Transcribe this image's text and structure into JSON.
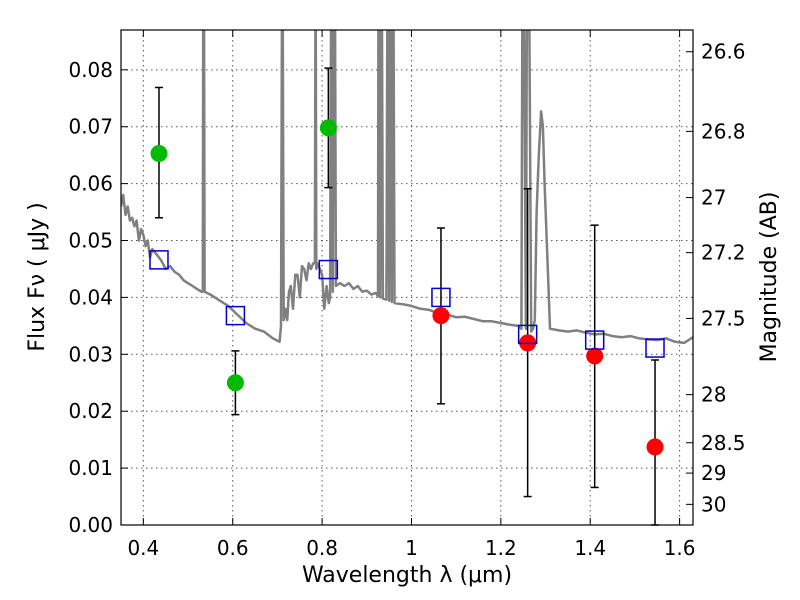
{
  "chart_data": {
    "type": "scatter",
    "title": "",
    "xlabel": "Wavelength  λ (μm)",
    "ylabel": "Flux  Fν  ( μJy )",
    "ylabel_right": "Magnitude (AB)",
    "xlim": [
      0.35,
      1.63
    ],
    "ylim": [
      0.0,
      0.087
    ],
    "grid": true,
    "x_ticks": [
      {
        "value": 0.4,
        "label": "0.4"
      },
      {
        "value": 0.6,
        "label": "0.6"
      },
      {
        "value": 0.8,
        "label": "0.8"
      },
      {
        "value": 1.0,
        "label": "1"
      },
      {
        "value": 1.2,
        "label": "1.2"
      },
      {
        "value": 1.4,
        "label": "1.4"
      },
      {
        "value": 1.6,
        "label": "1.6"
      }
    ],
    "y_ticks": [
      {
        "value": 0.0,
        "label": "0.00"
      },
      {
        "value": 0.01,
        "label": "0.01"
      },
      {
        "value": 0.02,
        "label": "0.02"
      },
      {
        "value": 0.03,
        "label": "0.03"
      },
      {
        "value": 0.04,
        "label": "0.04"
      },
      {
        "value": 0.05,
        "label": "0.05"
      },
      {
        "value": 0.06,
        "label": "0.06"
      },
      {
        "value": 0.07,
        "label": "0.07"
      },
      {
        "value": 0.08,
        "label": "0.08"
      }
    ],
    "y2_ticks": [
      {
        "value": 26.6,
        "label": "26.6"
      },
      {
        "value": 26.8,
        "label": "26.8"
      },
      {
        "value": 27.0,
        "label": "27"
      },
      {
        "value": 27.2,
        "label": "27.2"
      },
      {
        "value": 27.5,
        "label": "27.5"
      },
      {
        "value": 28.0,
        "label": "28"
      },
      {
        "value": 28.5,
        "label": "28.5"
      },
      {
        "value": 29.0,
        "label": "29"
      },
      {
        "value": 30.0,
        "label": "30"
      }
    ],
    "series": [
      {
        "kind": "marker",
        "shape": "circle",
        "color": "#00bb00",
        "points": [
          {
            "x": 0.435,
            "y": 0.0653,
            "ylo": 0.054,
            "yhi": 0.0769
          },
          {
            "x": 0.606,
            "y": 0.025,
            "ylo": 0.0194,
            "yhi": 0.0306
          },
          {
            "x": 0.814,
            "y": 0.0698,
            "ylo": 0.0593,
            "yhi": 0.0803
          }
        ]
      },
      {
        "kind": "marker",
        "shape": "circle",
        "color": "#ff0000",
        "points": [
          {
            "x": 1.066,
            "y": 0.0368,
            "ylo": 0.0213,
            "yhi": 0.0522
          },
          {
            "x": 1.26,
            "y": 0.032,
            "ylo": 0.005,
            "yhi": 0.0591
          },
          {
            "x": 1.41,
            "y": 0.0297,
            "ylo": 0.0066,
            "yhi": 0.0527
          },
          {
            "x": 1.545,
            "y": 0.0137,
            "ylo": 0.0,
            "yhi": 0.029
          }
        ]
      },
      {
        "kind": "marker",
        "shape": "square-open",
        "color": "#0000cc",
        "points": [
          {
            "x": 0.435,
            "y": 0.0466
          },
          {
            "x": 0.606,
            "y": 0.0368
          },
          {
            "x": 0.814,
            "y": 0.0449
          },
          {
            "x": 1.066,
            "y": 0.04
          },
          {
            "x": 1.26,
            "y": 0.0335
          },
          {
            "x": 1.41,
            "y": 0.0325
          },
          {
            "x": 1.545,
            "y": 0.0311
          }
        ]
      },
      {
        "kind": "line",
        "color": "#808080",
        "points": [
          [
            0.35,
            0.056
          ],
          [
            0.355,
            0.058
          ],
          [
            0.36,
            0.0545
          ],
          [
            0.365,
            0.056
          ],
          [
            0.37,
            0.0535
          ],
          [
            0.375,
            0.054
          ],
          [
            0.38,
            0.0525
          ],
          [
            0.385,
            0.0535
          ],
          [
            0.39,
            0.05
          ],
          [
            0.395,
            0.052
          ],
          [
            0.4,
            0.051
          ],
          [
            0.405,
            0.049
          ],
          [
            0.41,
            0.05
          ],
          [
            0.415,
            0.047
          ],
          [
            0.42,
            0.0485
          ],
          [
            0.43,
            0.0475
          ],
          [
            0.44,
            0.0465
          ],
          [
            0.45,
            0.045
          ],
          [
            0.46,
            0.0455
          ],
          [
            0.47,
            0.0445
          ],
          [
            0.48,
            0.044
          ],
          [
            0.49,
            0.043
          ],
          [
            0.5,
            0.0425
          ],
          [
            0.51,
            0.042
          ],
          [
            0.52,
            0.0415
          ],
          [
            0.53,
            0.041
          ],
          [
            0.533,
            0.041
          ],
          [
            0.534,
            0.087
          ],
          [
            0.536,
            0.087
          ],
          [
            0.537,
            0.041
          ],
          [
            0.55,
            0.0405
          ],
          [
            0.57,
            0.0395
          ],
          [
            0.59,
            0.0385
          ],
          [
            0.61,
            0.037
          ],
          [
            0.63,
            0.0355
          ],
          [
            0.65,
            0.0345
          ],
          [
            0.67,
            0.034
          ],
          [
            0.69,
            0.0328
          ],
          [
            0.705,
            0.0322
          ],
          [
            0.708,
            0.035
          ],
          [
            0.71,
            0.087
          ],
          [
            0.712,
            0.087
          ],
          [
            0.714,
            0.036
          ],
          [
            0.718,
            0.038
          ],
          [
            0.722,
            0.036
          ],
          [
            0.726,
            0.041
          ],
          [
            0.73,
            0.042
          ],
          [
            0.735,
            0.038
          ],
          [
            0.74,
            0.044
          ],
          [
            0.745,
            0.044
          ],
          [
            0.75,
            0.04
          ],
          [
            0.755,
            0.0455
          ],
          [
            0.76,
            0.045
          ],
          [
            0.765,
            0.043
          ],
          [
            0.77,
            0.046
          ],
          [
            0.775,
            0.045
          ],
          [
            0.78,
            0.046
          ],
          [
            0.784,
            0.046
          ],
          [
            0.785,
            0.087
          ],
          [
            0.786,
            0.087
          ],
          [
            0.787,
            0.045
          ],
          [
            0.79,
            0.046
          ],
          [
            0.795,
            0.045
          ],
          [
            0.8,
            0.044
          ],
          [
            0.805,
            0.038
          ],
          [
            0.81,
            0.042
          ],
          [
            0.815,
            0.039
          ],
          [
            0.818,
            0.04
          ],
          [
            0.82,
            0.087
          ],
          [
            0.822,
            0.087
          ],
          [
            0.824,
            0.041
          ],
          [
            0.826,
            0.087
          ],
          [
            0.829,
            0.087
          ],
          [
            0.831,
            0.042
          ],
          [
            0.84,
            0.0425
          ],
          [
            0.85,
            0.042
          ],
          [
            0.86,
            0.0425
          ],
          [
            0.87,
            0.0415
          ],
          [
            0.88,
            0.042
          ],
          [
            0.89,
            0.041
          ],
          [
            0.9,
            0.0412
          ],
          [
            0.91,
            0.0405
          ],
          [
            0.92,
            0.0408
          ],
          [
            0.925,
            0.0402
          ],
          [
            0.926,
            0.087
          ],
          [
            0.928,
            0.087
          ],
          [
            0.93,
            0.04
          ],
          [
            0.932,
            0.087
          ],
          [
            0.934,
            0.087
          ],
          [
            0.936,
            0.0398
          ],
          [
            0.944,
            0.0396
          ],
          [
            0.946,
            0.087
          ],
          [
            0.948,
            0.087
          ],
          [
            0.95,
            0.0394
          ],
          [
            0.952,
            0.087
          ],
          [
            0.954,
            0.087
          ],
          [
            0.956,
            0.0392
          ],
          [
            0.958,
            0.087
          ],
          [
            0.96,
            0.087
          ],
          [
            0.962,
            0.039
          ],
          [
            0.98,
            0.0388
          ],
          [
            1.0,
            0.0385
          ],
          [
            1.02,
            0.038
          ],
          [
            1.04,
            0.0378
          ],
          [
            1.06,
            0.0372
          ],
          [
            1.08,
            0.037
          ],
          [
            1.1,
            0.0365
          ],
          [
            1.12,
            0.0366
          ],
          [
            1.14,
            0.0362
          ],
          [
            1.16,
            0.0358
          ],
          [
            1.18,
            0.0358
          ],
          [
            1.2,
            0.0355
          ],
          [
            1.22,
            0.0352
          ],
          [
            1.24,
            0.035
          ],
          [
            1.246,
            0.0345
          ],
          [
            1.248,
            0.087
          ],
          [
            1.252,
            0.087
          ],
          [
            1.256,
            0.0345
          ],
          [
            1.258,
            0.087
          ],
          [
            1.264,
            0.087
          ],
          [
            1.268,
            0.034
          ],
          [
            1.272,
            0.0345
          ],
          [
            1.276,
            0.036
          ],
          [
            1.28,
            0.055
          ],
          [
            1.285,
            0.065
          ],
          [
            1.29,
            0.0727
          ],
          [
            1.294,
            0.07
          ],
          [
            1.298,
            0.06
          ],
          [
            1.305,
            0.045
          ],
          [
            1.31,
            0.0345
          ],
          [
            1.33,
            0.0342
          ],
          [
            1.35,
            0.034
          ],
          [
            1.37,
            0.0342
          ],
          [
            1.39,
            0.0338
          ],
          [
            1.41,
            0.0335
          ],
          [
            1.43,
            0.0336
          ],
          [
            1.45,
            0.0332
          ],
          [
            1.47,
            0.033
          ],
          [
            1.49,
            0.0332
          ],
          [
            1.51,
            0.0328
          ],
          [
            1.53,
            0.0326
          ],
          [
            1.55,
            0.0325
          ],
          [
            1.57,
            0.0328
          ],
          [
            1.59,
            0.0322
          ],
          [
            1.61,
            0.032
          ],
          [
            1.63,
            0.033
          ]
        ]
      }
    ]
  }
}
